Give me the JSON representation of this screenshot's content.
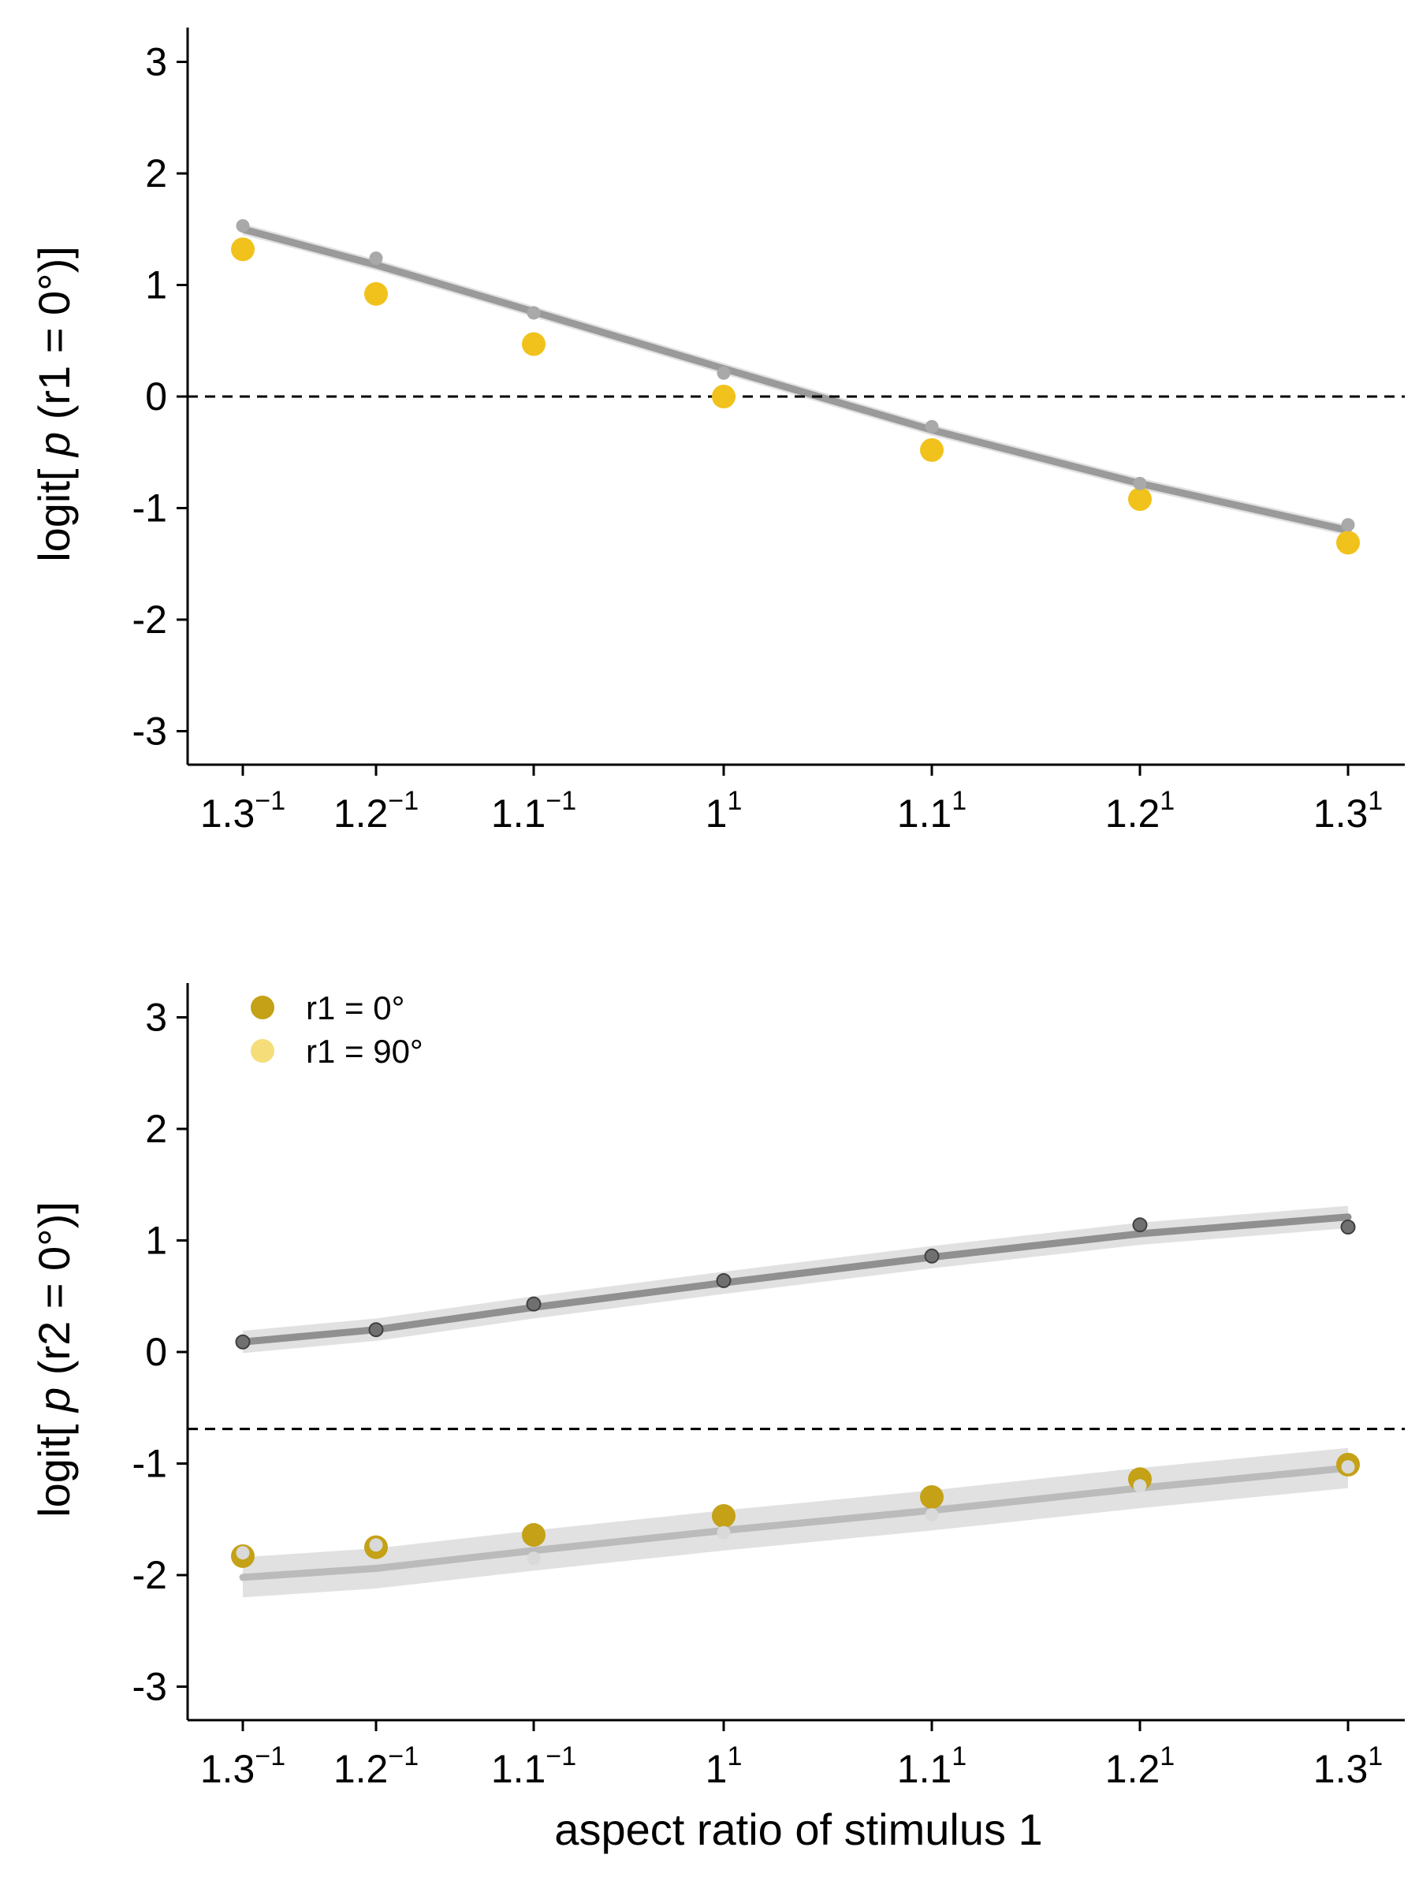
{
  "chart_data": [
    {
      "type": "scatter",
      "ylabel": {
        "prefix": "logit[ ",
        "italic": "p",
        "suffix": " (r1 = 0°)]"
      },
      "xlabel": "",
      "ylim": [
        -3.3,
        3.3
      ],
      "yticks": [
        3,
        2,
        1,
        0,
        -1,
        -2,
        -3
      ],
      "ytick_labels": [
        "3",
        "2",
        "1",
        "0",
        "-1",
        "-2",
        "-3"
      ],
      "x_scale": "log",
      "x": [
        0.76923,
        0.83333,
        0.90909,
        1.0,
        1.1,
        1.2,
        1.3
      ],
      "xtick_labels": [
        {
          "base": "1.3",
          "exp": "−1"
        },
        {
          "base": "1.2",
          "exp": "−1"
        },
        {
          "base": "1.1",
          "exp": "−1"
        },
        {
          "base": "1",
          "exp": "1"
        },
        {
          "base": "1.1",
          "exp": "1"
        },
        {
          "base": "1.2",
          "exp": "1"
        },
        {
          "base": "1.3",
          "exp": "1"
        }
      ],
      "reference_line_y": 0,
      "series": [
        {
          "values": [
            1.32,
            0.92,
            0.47,
            0.0,
            -0.48,
            -0.92,
            -1.31
          ],
          "color": "#F1C21B",
          "marker": "large"
        },
        {
          "values": [
            1.53,
            1.24,
            0.75,
            0.21,
            -0.27,
            -0.78,
            -1.15
          ],
          "color": "#A9A9A9",
          "marker": "small"
        }
      ],
      "fits": [
        {
          "values": [
            1.5,
            1.18,
            0.76,
            0.25,
            -0.3,
            -0.78,
            -1.2
          ],
          "band": 0.05,
          "color": "#9A9A9A"
        }
      ]
    },
    {
      "type": "scatter",
      "ylabel": {
        "prefix": "logit[ ",
        "italic": "p",
        "suffix": " (r2 = 0°)]"
      },
      "xlabel": "aspect ratio of stimulus 1",
      "ylim": [
        -3.3,
        3.3
      ],
      "yticks": [
        3,
        2,
        1,
        0,
        -1,
        -2,
        -3
      ],
      "ytick_labels": [
        "3",
        "2",
        "1",
        "0",
        "-1",
        "-2",
        "-3"
      ],
      "x_scale": "log",
      "x": [
        0.76923,
        0.83333,
        0.90909,
        1.0,
        1.1,
        1.2,
        1.3
      ],
      "xtick_labels": [
        {
          "base": "1.3",
          "exp": "−1"
        },
        {
          "base": "1.2",
          "exp": "−1"
        },
        {
          "base": "1.1",
          "exp": "−1"
        },
        {
          "base": "1",
          "exp": "1"
        },
        {
          "base": "1.1",
          "exp": "1"
        },
        {
          "base": "1.2",
          "exp": "1"
        },
        {
          "base": "1.3",
          "exp": "1"
        }
      ],
      "reference_line_y": -0.69,
      "legend": {
        "placement": "top-left",
        "entries": [
          {
            "label": "r1 = 0°",
            "color": "#C4A116"
          },
          {
            "label": "r1 = 90°",
            "color": "#F5DD7A"
          }
        ]
      },
      "series": [
        {
          "name": "r1 = 0°",
          "values": [
            -1.83,
            -1.75,
            -1.64,
            -1.47,
            -1.3,
            -1.14,
            -1.01
          ],
          "color": "#C4A116",
          "marker": "large"
        },
        {
          "name": "r1 = 90°",
          "values": [
            -1.8,
            -1.73,
            -1.85,
            -1.62,
            -1.46,
            -1.2,
            -1.03
          ],
          "color": "#D9D9D9",
          "marker": "small"
        },
        {
          "values": [
            0.09,
            0.2,
            0.43,
            0.64,
            0.86,
            1.14,
            1.12
          ],
          "color": "#707070",
          "marker": "small"
        }
      ],
      "fits": [
        {
          "values": [
            0.09,
            0.2,
            0.4,
            0.62,
            0.85,
            1.06,
            1.21
          ],
          "band": 0.1,
          "color": "#909090"
        },
        {
          "values": [
            -2.02,
            -1.94,
            -1.78,
            -1.6,
            -1.42,
            -1.22,
            -1.04
          ],
          "band": 0.18,
          "color": "#BBBBBB"
        }
      ]
    }
  ]
}
